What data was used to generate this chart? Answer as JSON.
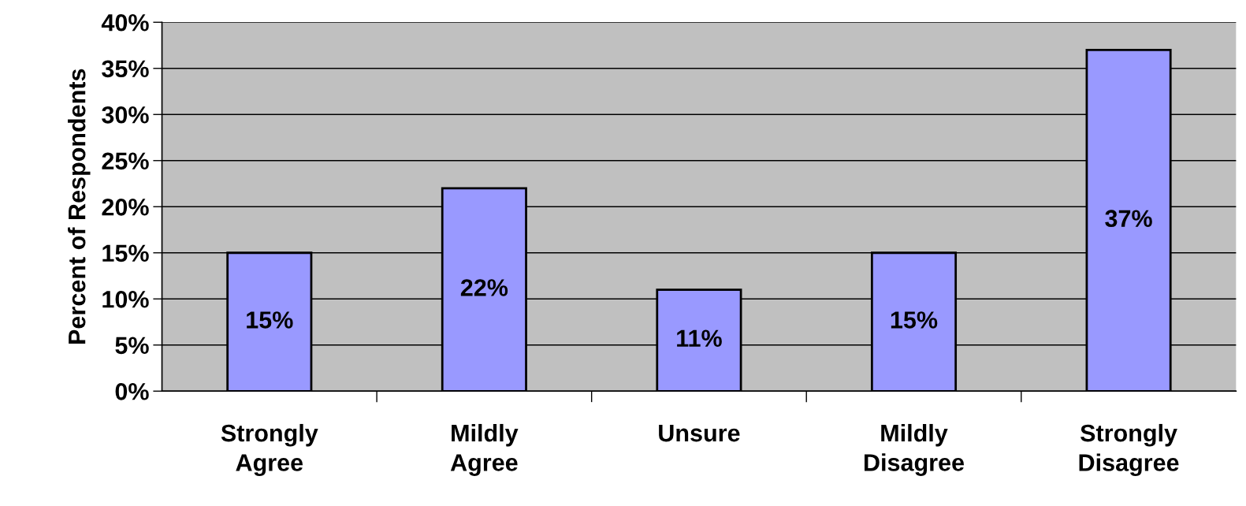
{
  "chart_data": {
    "type": "bar",
    "ylabel": "Percent of Respondents",
    "categories": [
      "Strongly\nAgree",
      "Mildly\nAgree",
      "Unsure",
      "Mildly\nDisagree",
      "Strongly\nDisagree"
    ],
    "values": [
      15,
      22,
      11,
      15,
      37
    ],
    "value_labels": [
      "15%",
      "22%",
      "11%",
      "15%",
      "37%"
    ],
    "color": "#9999ff",
    "ylim": [
      0,
      40
    ],
    "yticks": [
      {
        "value": 0,
        "label": "0%"
      },
      {
        "value": 5,
        "label": "5%"
      },
      {
        "value": 10,
        "label": "10%"
      },
      {
        "value": 15,
        "label": "15%"
      },
      {
        "value": 20,
        "label": "20%"
      },
      {
        "value": 25,
        "label": "25%"
      },
      {
        "value": 30,
        "label": "30%"
      },
      {
        "value": 35,
        "label": "35%"
      },
      {
        "value": 40,
        "label": "40%"
      }
    ],
    "grid": "y",
    "legend": false
  }
}
